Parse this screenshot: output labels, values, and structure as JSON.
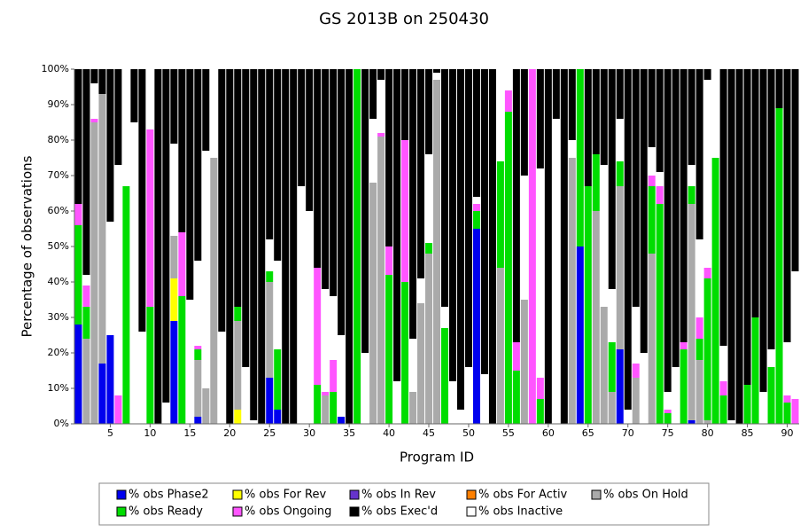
{
  "chart_data": {
    "type": "stacked-bar",
    "title": "GS 2013B on 250430",
    "x_label": "Program ID",
    "y_label": "Percentage of observations",
    "categories": [
      null,
      null,
      null,
      null,
      "5",
      null,
      null,
      null,
      null,
      "10",
      null,
      null,
      null,
      null,
      "15",
      null,
      null,
      null,
      null,
      "20",
      null,
      null,
      null,
      null,
      "25",
      null,
      null,
      null,
      null,
      "30",
      null,
      null,
      null,
      null,
      "35",
      null,
      null,
      null,
      null,
      "40",
      null,
      null,
      null,
      null,
      "45",
      null,
      null,
      null,
      null,
      "50",
      null,
      null,
      null,
      null,
      "55",
      null,
      null,
      null,
      null,
      "60",
      null,
      null,
      null,
      null,
      "65",
      null,
      null,
      null,
      null,
      "70",
      null,
      null,
      null,
      null,
      "75",
      null,
      null,
      null,
      null,
      "80",
      null,
      null,
      null,
      null,
      "85",
      null,
      null,
      null,
      null,
      "90",
      null
    ],
    "ylim": [
      0,
      100
    ],
    "yticks": [
      {
        "value": 0,
        "label": "0%"
      },
      {
        "value": 10,
        "label": "10%"
      },
      {
        "value": 20,
        "label": "20%"
      },
      {
        "value": 30,
        "label": "30%"
      },
      {
        "value": 40,
        "label": "40%"
      },
      {
        "value": 50,
        "label": "50%"
      },
      {
        "value": 60,
        "label": "60%"
      },
      {
        "value": 70,
        "label": "70%"
      },
      {
        "value": 80,
        "label": "80%"
      },
      {
        "value": 90,
        "label": "90%"
      },
      {
        "value": 100,
        "label": "100%"
      }
    ],
    "series": [
      {
        "name": "% obs Phase2",
        "color": "#0000ee",
        "values": [
          28,
          0,
          0,
          17,
          25,
          0,
          0,
          0,
          0,
          0,
          0,
          0,
          29,
          0,
          0,
          2,
          0,
          0,
          0,
          0,
          0,
          0,
          0,
          0,
          13,
          4,
          0,
          0,
          0,
          0,
          0,
          0,
          0,
          2,
          0,
          0,
          0,
          0,
          0,
          0,
          0,
          0,
          0,
          0,
          0,
          0,
          0,
          0,
          0,
          0,
          55,
          0,
          0,
          0,
          0,
          0,
          0,
          0,
          0,
          0,
          0,
          0,
          0,
          50,
          0,
          0,
          0,
          0,
          21,
          0,
          0,
          0,
          0,
          0,
          0,
          0,
          0,
          1,
          0,
          0,
          0,
          0,
          0,
          0,
          0,
          0,
          0,
          0,
          0,
          0,
          0
        ]
      },
      {
        "name": "% obs For Rev",
        "color": "#ffff00",
        "values": [
          0,
          0,
          0,
          0,
          0,
          0,
          0,
          0,
          0,
          0,
          0,
          0,
          12,
          0,
          0,
          0,
          0,
          0,
          0,
          0,
          4,
          0,
          0,
          0,
          0,
          0,
          0,
          0,
          0,
          0,
          0,
          0,
          0,
          0,
          0,
          0,
          0,
          0,
          0,
          0,
          0,
          0,
          0,
          0,
          0,
          0,
          0,
          0,
          0,
          0,
          0,
          0,
          0,
          0,
          0,
          0,
          0,
          0,
          0,
          0,
          0,
          0,
          0,
          0,
          0,
          0,
          0,
          0,
          0,
          0,
          0,
          0,
          0,
          0,
          0,
          0,
          0,
          0,
          0,
          0,
          0,
          0,
          0,
          0,
          0,
          0,
          0,
          0,
          0,
          0,
          0
        ]
      },
      {
        "name": "% obs In Rev",
        "color": "#6633cc",
        "values": [
          0,
          0,
          0,
          0,
          0,
          0,
          0,
          0,
          0,
          0,
          0,
          0,
          0,
          0,
          0,
          0,
          0,
          0,
          0,
          0,
          0,
          0,
          0,
          0,
          0,
          0,
          0,
          0,
          0,
          0,
          0,
          0,
          0,
          0,
          0,
          0,
          0,
          0,
          0,
          0,
          0,
          0,
          0,
          0,
          0,
          0,
          0,
          0,
          0,
          0,
          0,
          0,
          0,
          0,
          0,
          0,
          0,
          0,
          0,
          0,
          0,
          0,
          0,
          0,
          0,
          0,
          0,
          0,
          0,
          0,
          0,
          0,
          0,
          0,
          0,
          0,
          0,
          0,
          0,
          0,
          0,
          0,
          0,
          0,
          0,
          0,
          0,
          0,
          0,
          0,
          0
        ]
      },
      {
        "name": "% obs For Activ",
        "color": "#ff8000",
        "values": [
          0,
          0,
          0,
          0,
          0,
          0,
          0,
          0,
          0,
          0,
          0,
          0,
          0,
          0,
          0,
          0,
          0,
          0,
          0,
          0,
          0,
          0,
          0,
          0,
          0,
          0,
          0,
          0,
          0,
          0,
          0,
          0,
          0,
          0,
          0,
          0,
          0,
          0,
          0,
          0,
          0,
          0,
          0,
          0,
          0,
          0,
          0,
          0,
          0,
          0,
          0,
          0,
          0,
          0,
          0,
          0,
          0,
          0,
          0,
          0,
          0,
          0,
          0,
          0,
          0,
          0,
          0,
          0,
          0,
          0,
          0,
          0,
          0,
          0,
          0,
          0,
          0,
          0,
          0,
          0,
          0,
          0,
          0,
          0,
          0,
          0,
          0,
          0,
          0,
          0,
          0
        ]
      },
      {
        "name": "% obs On Hold",
        "color": "#aaaaaa",
        "values": [
          0,
          24,
          85,
          76,
          0,
          0,
          0,
          0,
          0,
          0,
          0,
          0,
          12,
          0,
          0,
          16,
          10,
          75,
          0,
          0,
          25,
          0,
          0,
          0,
          27,
          0,
          0,
          0,
          0,
          0,
          0,
          8,
          0,
          0,
          0,
          0,
          0,
          68,
          81,
          0,
          0,
          0,
          9,
          34,
          48,
          97,
          0,
          0,
          0,
          0,
          0,
          0,
          0,
          44,
          0,
          0,
          35,
          0,
          0,
          0,
          0,
          0,
          75,
          0,
          0,
          60,
          33,
          9,
          46,
          0,
          13,
          0,
          48,
          0,
          0,
          0,
          0,
          61,
          18,
          1,
          0,
          0,
          0,
          0,
          0,
          0,
          0,
          0,
          0,
          0,
          0
        ]
      },
      {
        "name": "% obs Ready",
        "color": "#00dd00",
        "values": [
          28,
          9,
          0,
          0,
          0,
          0,
          67,
          0,
          0,
          33,
          0,
          0,
          0,
          36,
          0,
          3,
          0,
          0,
          0,
          0,
          4,
          0,
          0,
          0,
          3,
          17,
          0,
          0,
          0,
          0,
          11,
          0,
          9,
          0,
          0,
          100,
          0,
          0,
          0,
          42,
          0,
          40,
          0,
          0,
          3,
          0,
          27,
          0,
          0,
          0,
          5,
          0,
          0,
          30,
          88,
          15,
          0,
          0,
          7,
          0,
          0,
          0,
          0,
          50,
          67,
          16,
          0,
          14,
          7,
          0,
          0,
          0,
          19,
          62,
          3,
          0,
          21,
          5,
          6,
          40,
          75,
          8,
          0,
          0,
          11,
          30,
          0,
          16,
          89,
          6,
          0
        ]
      },
      {
        "name": "% obs Ongoing",
        "color": "#ff55ff",
        "values": [
          6,
          6,
          1,
          0,
          0,
          8,
          0,
          0,
          0,
          50,
          0,
          0,
          0,
          18,
          0,
          1,
          0,
          0,
          0,
          0,
          0,
          0,
          0,
          0,
          0,
          0,
          0,
          0,
          0,
          0,
          33,
          1,
          9,
          0,
          0,
          0,
          0,
          0,
          1,
          8,
          0,
          40,
          0,
          0,
          0,
          0,
          0,
          0,
          0,
          0,
          2,
          0,
          0,
          0,
          6,
          8,
          0,
          100,
          6,
          0,
          0,
          0,
          0,
          0,
          0,
          0,
          0,
          0,
          0,
          0,
          4,
          0,
          3,
          5,
          1,
          0,
          2,
          0,
          6,
          3,
          0,
          4,
          0,
          0,
          0,
          0,
          0,
          0,
          0,
          2,
          7
        ]
      },
      {
        "name": "% obs Inactive",
        "color": "#ffffff",
        "values": [
          0,
          3,
          10,
          0,
          32,
          65,
          33,
          85,
          26,
          17,
          0,
          6,
          26,
          0,
          35,
          24,
          67,
          25,
          26,
          0,
          0,
          16,
          1,
          0,
          9,
          25,
          0,
          0,
          67,
          60,
          0,
          29,
          18,
          23,
          0,
          0,
          20,
          18,
          15,
          0,
          12,
          0,
          15,
          7,
          25,
          2,
          6,
          12,
          4,
          16,
          2,
          14,
          0,
          26,
          6,
          0,
          35,
          0,
          59,
          0,
          86,
          0,
          5,
          0,
          0,
          0,
          40,
          15,
          12,
          4,
          16,
          20,
          8,
          4,
          5,
          16,
          0,
          6,
          22,
          53,
          25,
          10,
          1,
          0,
          0,
          0,
          9,
          5,
          0,
          15,
          36
        ]
      },
      {
        "name": "% obs Exec'd",
        "color": "#000000",
        "values": [
          38,
          58,
          4,
          7,
          43,
          27,
          0,
          15,
          74,
          0,
          100,
          94,
          21,
          46,
          65,
          54,
          23,
          0,
          74,
          100,
          67,
          84,
          99,
          100,
          48,
          54,
          100,
          100,
          33,
          40,
          56,
          62,
          64,
          75,
          100,
          0,
          80,
          14,
          3,
          50,
          88,
          20,
          76,
          59,
          24,
          1,
          67,
          88,
          96,
          84,
          36,
          86,
          100,
          0,
          0,
          77,
          30,
          0,
          28,
          100,
          14,
          100,
          20,
          0,
          33,
          24,
          27,
          62,
          14,
          96,
          67,
          80,
          22,
          29,
          91,
          84,
          77,
          27,
          48,
          3,
          0,
          78,
          99,
          100,
          89,
          70,
          91,
          79,
          11,
          77,
          57
        ]
      }
    ]
  }
}
